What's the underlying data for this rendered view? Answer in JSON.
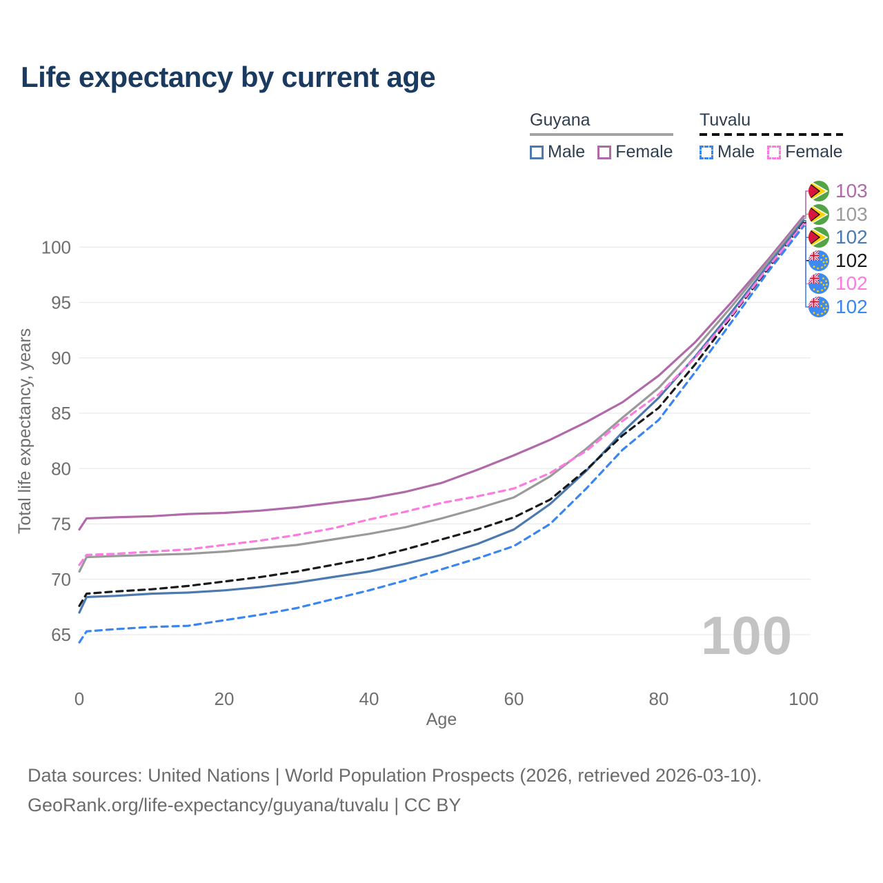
{
  "title": "Life expectancy by current age",
  "watermark": "100",
  "footer": {
    "line1": "Data sources: United Nations | World Population Prospects (2026, retrieved 2026-03-10).",
    "line2": "GeoRank.org/life-expectancy/guyana/tuvalu | CC BY"
  },
  "legend": {
    "groups": [
      {
        "country": "Guyana",
        "line_style": "solid",
        "underline_color": "#a3a3a3",
        "items": [
          {
            "label": "Male",
            "color": "#4b79b0"
          },
          {
            "label": "Female",
            "color": "#b06aaa"
          }
        ]
      },
      {
        "country": "Tuvalu",
        "line_style": "dashed",
        "underline_color": "#111111",
        "items": [
          {
            "label": "Male",
            "color": "#3a86f0"
          },
          {
            "label": "Female",
            "color": "#fb7be0"
          }
        ]
      }
    ]
  },
  "chart_data": {
    "type": "line",
    "title": "Life expectancy by current age",
    "xlabel": "Age",
    "ylabel": "Total life expectancy, years",
    "x_ticks": [
      0,
      20,
      40,
      60,
      80,
      100
    ],
    "y_ticks": [
      65,
      70,
      75,
      80,
      85,
      90,
      95,
      100
    ],
    "xlim": [
      0,
      100
    ],
    "ylim": [
      63.5,
      103.5
    ],
    "grid": true,
    "legend_position": "top-right",
    "x": [
      0,
      1,
      5,
      10,
      15,
      20,
      25,
      30,
      35,
      40,
      45,
      50,
      55,
      60,
      65,
      70,
      75,
      80,
      85,
      90,
      95,
      100
    ],
    "series": [
      {
        "name": "Guyana Female",
        "country": "Guyana",
        "sex": "Female",
        "color": "#b06aaa",
        "dashed": false,
        "flag": "guyana",
        "end_label": "103",
        "values": [
          74.5,
          75.5,
          75.6,
          75.7,
          75.9,
          76.0,
          76.2,
          76.5,
          76.9,
          77.3,
          77.9,
          78.7,
          79.9,
          81.2,
          82.6,
          84.2,
          86.0,
          88.4,
          91.4,
          95.0,
          98.8,
          102.8
        ]
      },
      {
        "name": "Guyana Both sexes",
        "country": "Guyana",
        "sex": "Both",
        "color": "#9a9a9a",
        "dashed": false,
        "flag": "guyana",
        "end_label": "103",
        "values": [
          70.7,
          72.0,
          72.1,
          72.2,
          72.3,
          72.5,
          72.8,
          73.1,
          73.6,
          74.1,
          74.7,
          75.5,
          76.4,
          77.4,
          79.3,
          81.8,
          84.6,
          87.3,
          90.8,
          94.6,
          98.6,
          102.6
        ]
      },
      {
        "name": "Guyana Male",
        "country": "Guyana",
        "sex": "Male",
        "color": "#4b79b0",
        "dashed": false,
        "flag": "guyana",
        "end_label": "102",
        "values": [
          67.0,
          68.4,
          68.5,
          68.7,
          68.8,
          69.0,
          69.3,
          69.7,
          70.2,
          70.7,
          71.4,
          72.2,
          73.2,
          74.5,
          76.8,
          79.8,
          83.3,
          86.4,
          90.1,
          94.1,
          98.3,
          102.4
        ]
      },
      {
        "name": "Tuvalu Both sexes",
        "country": "Tuvalu",
        "sex": "Both",
        "color": "#1a1a1a",
        "dashed": true,
        "flag": "tuvalu",
        "end_label": "102",
        "values": [
          67.6,
          68.7,
          68.9,
          69.1,
          69.4,
          69.8,
          70.2,
          70.7,
          71.3,
          71.9,
          72.7,
          73.6,
          74.5,
          75.6,
          77.2,
          79.9,
          83.0,
          85.5,
          89.4,
          93.7,
          98.0,
          102.2
        ]
      },
      {
        "name": "Tuvalu Female",
        "country": "Tuvalu",
        "sex": "Female",
        "color": "#fb7be0",
        "dashed": true,
        "flag": "tuvalu",
        "end_label": "102",
        "values": [
          71.3,
          72.2,
          72.3,
          72.5,
          72.7,
          73.1,
          73.5,
          74.0,
          74.6,
          75.4,
          76.1,
          76.9,
          77.5,
          78.2,
          79.6,
          81.6,
          84.3,
          86.7,
          90.0,
          93.8,
          98.1,
          102.1
        ]
      },
      {
        "name": "Tuvalu Male",
        "country": "Tuvalu",
        "sex": "Male",
        "color": "#3a86f0",
        "dashed": true,
        "flag": "tuvalu",
        "end_label": "102",
        "values": [
          64.3,
          65.3,
          65.5,
          65.7,
          65.8,
          66.3,
          66.8,
          67.4,
          68.2,
          69.0,
          69.9,
          70.9,
          71.9,
          73.0,
          75.0,
          78.2,
          81.7,
          84.4,
          88.7,
          93.2,
          97.7,
          101.9
        ]
      }
    ]
  }
}
